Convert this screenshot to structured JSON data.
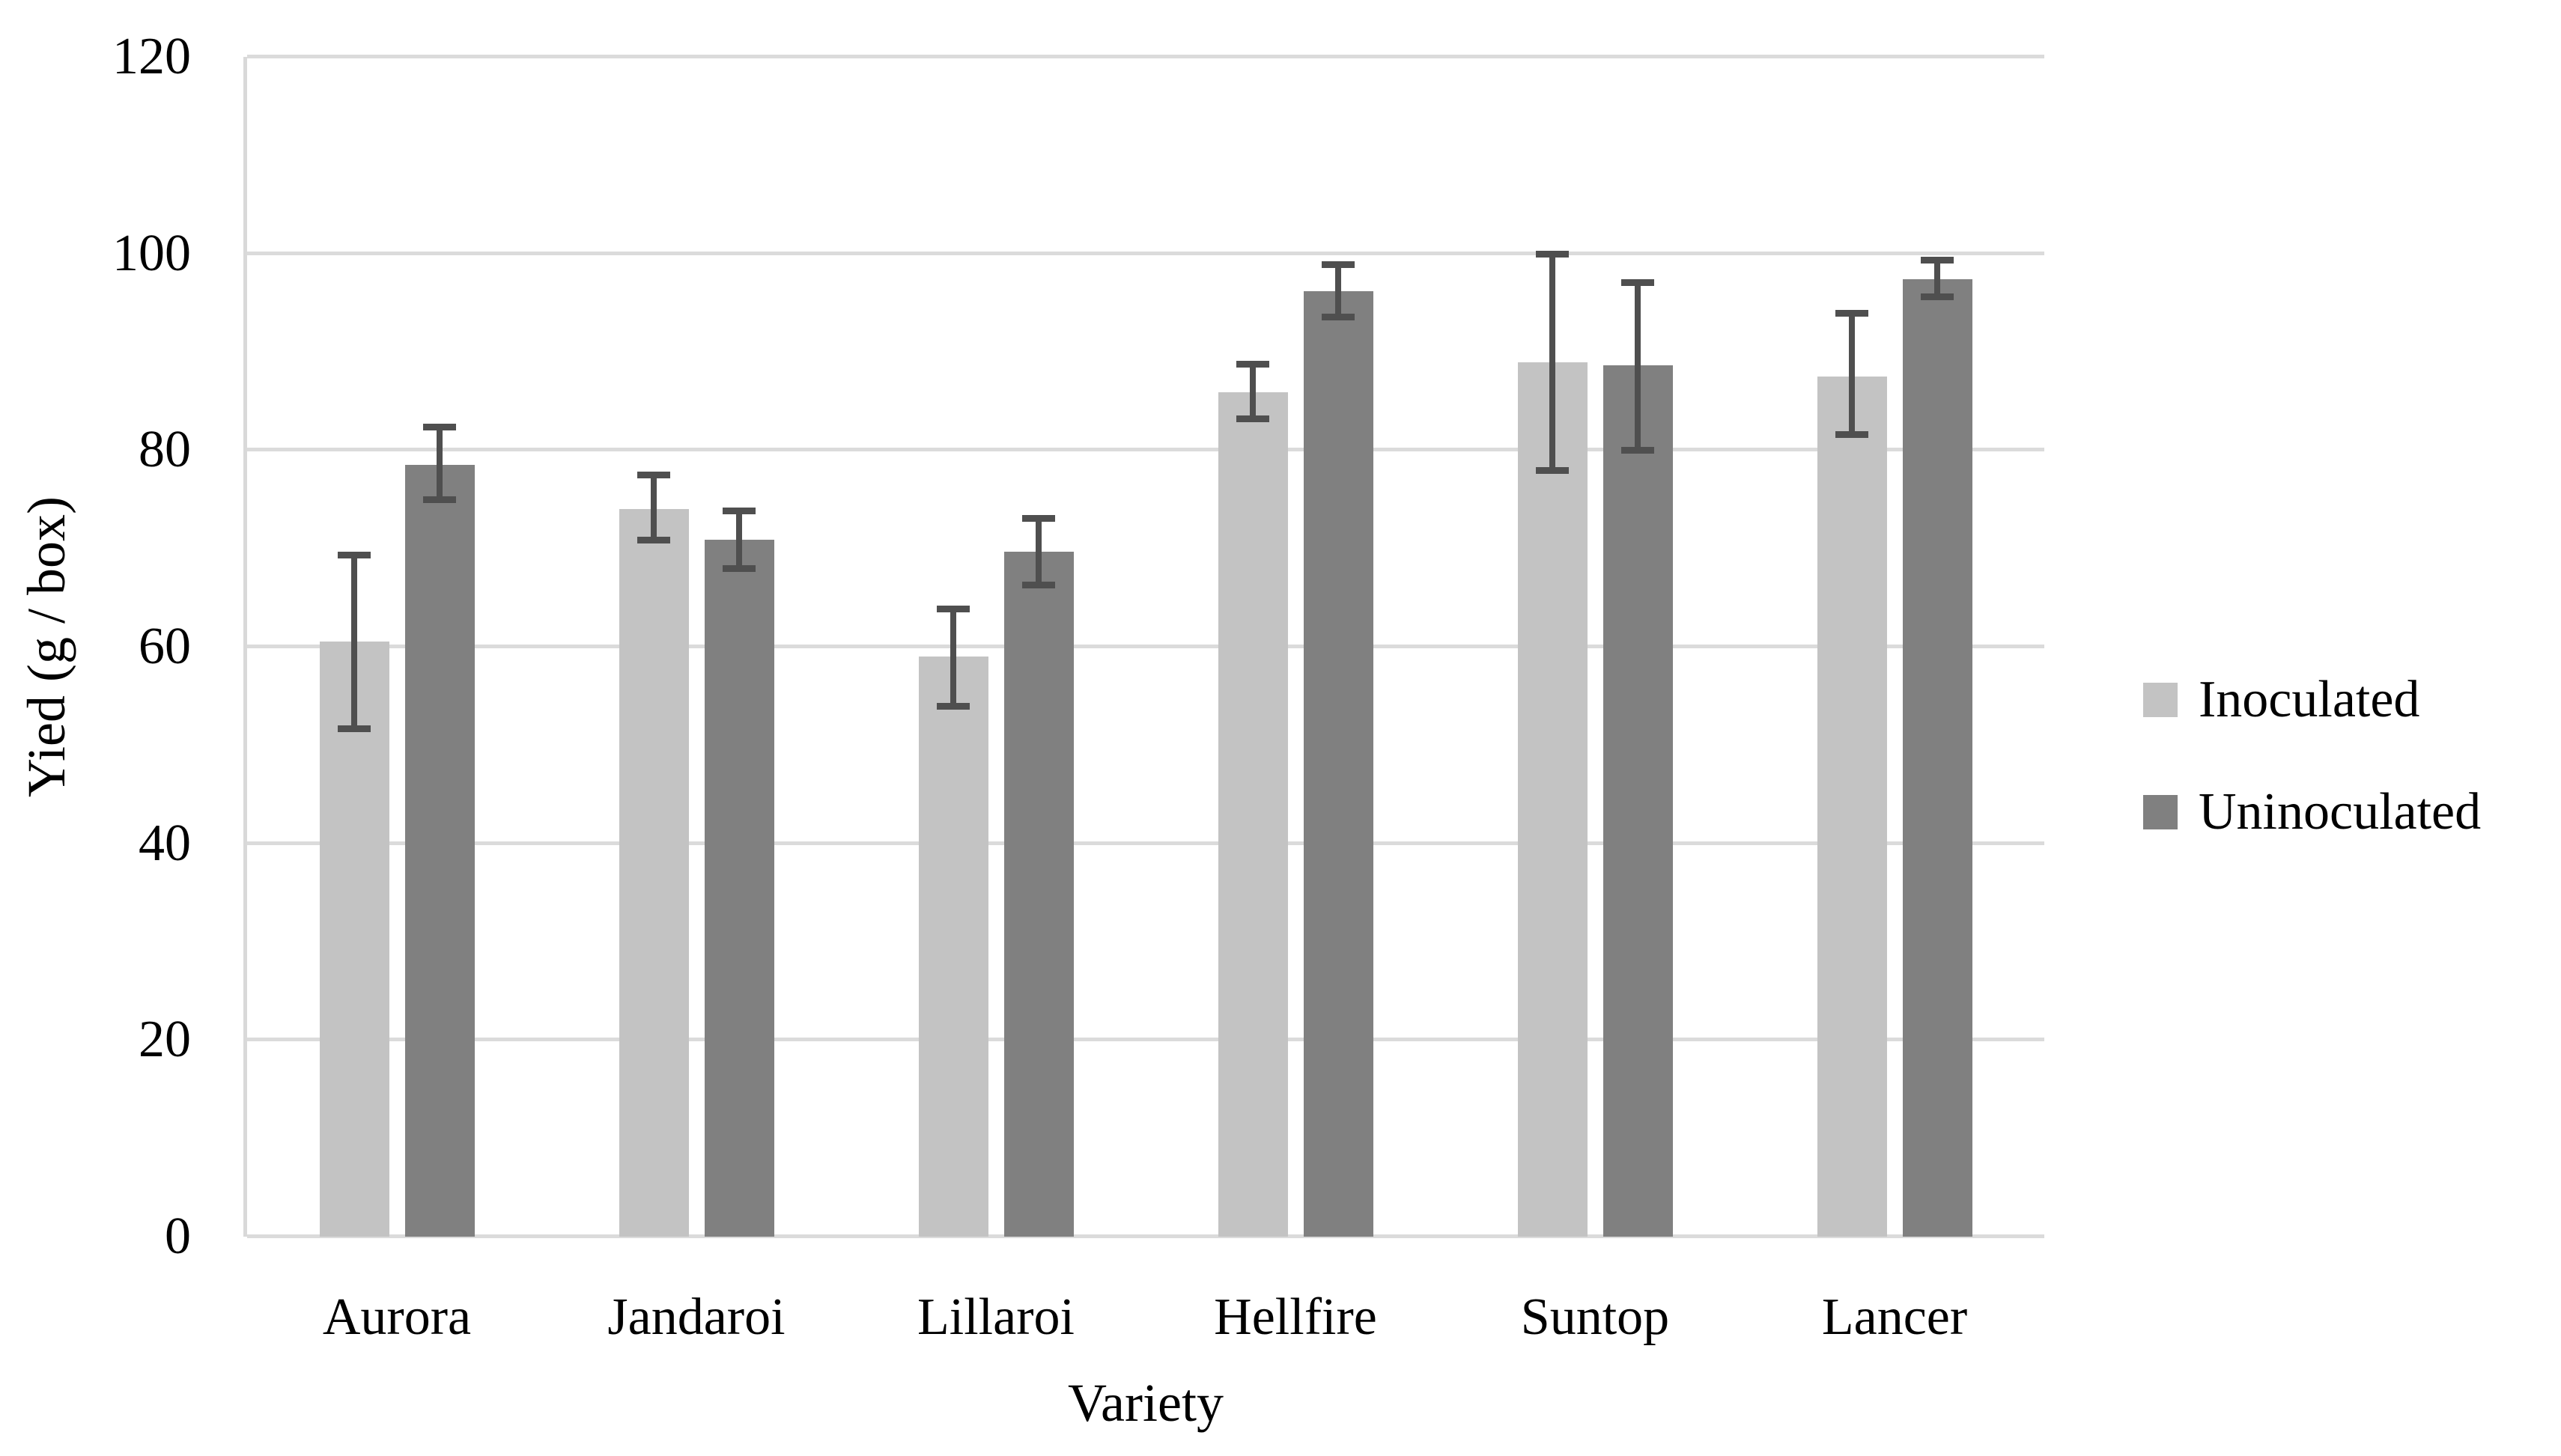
{
  "chart_data": {
    "type": "bar",
    "title": "",
    "xlabel": "Variety",
    "ylabel": "Yied (g / box)",
    "ylim": [
      0,
      120
    ],
    "yticks": [
      0,
      20,
      40,
      60,
      80,
      100,
      120
    ],
    "grid": true,
    "legend_position": "right-middle",
    "categories": [
      "Aurora",
      "Jandaroi",
      "Lillaroi",
      "Hellfire",
      "Suntop",
      "Lancer"
    ],
    "series": [
      {
        "name": "Inoculated",
        "color": "#c3c3c3",
        "values": [
          60.5,
          74.0,
          59.0,
          85.9,
          88.9,
          87.5
        ],
        "error_low": [
          51.7,
          70.9,
          54.0,
          83.2,
          78.0,
          81.6
        ],
        "error_high": [
          69.3,
          77.4,
          63.8,
          88.7,
          99.9,
          93.9
        ]
      },
      {
        "name": "Uninoculated",
        "color": "#808080",
        "values": [
          78.5,
          70.9,
          69.7,
          96.2,
          88.6,
          97.4
        ],
        "error_low": [
          75.0,
          68.0,
          66.3,
          93.6,
          80.0,
          95.6
        ],
        "error_high": [
          82.3,
          73.8,
          73.0,
          98.8,
          97.0,
          99.3
        ]
      }
    ],
    "error_bar_color": "#4f4f4f",
    "gridline_color": "#dbdbdb",
    "axis_line_color": "#d9d9d9"
  }
}
